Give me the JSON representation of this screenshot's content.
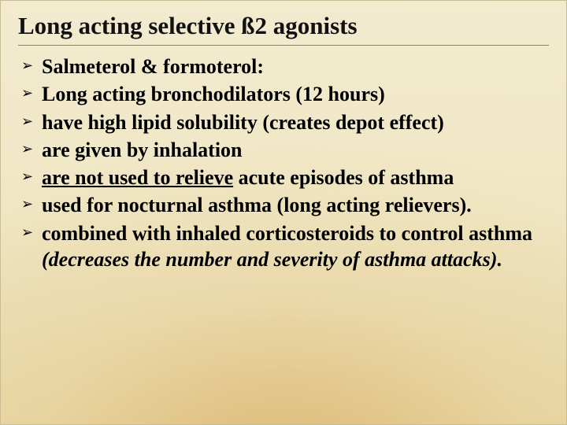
{
  "slide": {
    "title": "Long acting selective ß2 agonists",
    "bullet_glyph": "➢",
    "items": [
      {
        "segments": [
          {
            "text": "Salmeterol & formoterol:"
          }
        ]
      },
      {
        "segments": [
          {
            "text": "Long acting bronchodilators (12 hours)"
          }
        ]
      },
      {
        "segments": [
          {
            "text": "have high lipid solubility (creates depot effect)"
          }
        ]
      },
      {
        "segments": [
          {
            "text": "are given by inhalation"
          }
        ]
      },
      {
        "segments": [
          {
            "text": "are not used to relieve",
            "underline": true
          },
          {
            "text": " acute episodes of asthma"
          }
        ]
      },
      {
        "segments": [
          {
            "text": "used for nocturnal asthma (long acting relievers)."
          }
        ]
      },
      {
        "segments": [
          {
            "text": "combined with inhaled corticosteroids to control asthma "
          },
          {
            "text": "(decreases the number and severity of asthma attacks).",
            "italic": true
          }
        ]
      }
    ],
    "colors": {
      "title": "#111111",
      "text": "#000000",
      "rule": "#c86a2a",
      "bg_top": "#f2ebd0",
      "bg_bottom": "#e8d9a8"
    },
    "fonts": {
      "title_size_pt": 31,
      "body_size_pt": 26,
      "family": "Times New Roman"
    }
  }
}
